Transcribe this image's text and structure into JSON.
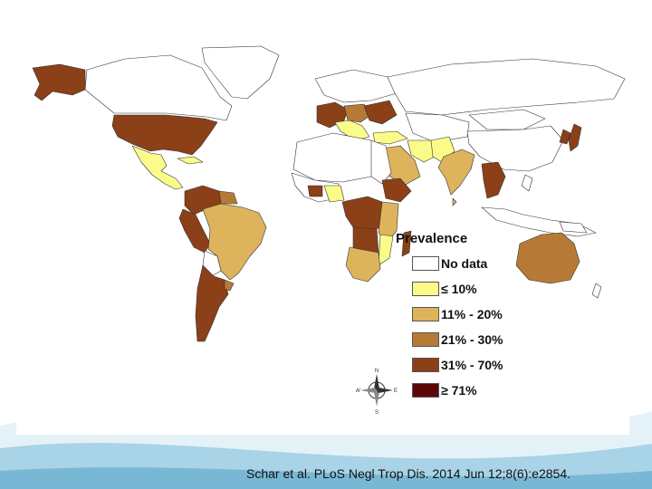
{
  "legend": {
    "title": "Prevalence",
    "items": [
      {
        "label": "No data",
        "color": "#ffffff"
      },
      {
        "label": "≤ 10%",
        "color": "#fbfb8a"
      },
      {
        "label": "11% - 20%",
        "color": "#ddb35c"
      },
      {
        "label": "21% - 30%",
        "color": "#b77a36"
      },
      {
        "label": "31% - 70%",
        "color": "#8b4018"
      },
      {
        "label": "≥ 71%",
        "color": "#5c0808"
      }
    ]
  },
  "compass": {
    "n": "N",
    "s": "S",
    "e": "E",
    "w": "W"
  },
  "citation": "Schar et al. PLoS Negl Trop Dis. 2014 Jun 12;8(6):e2854.",
  "background_colors": {
    "wave_light": "#e4f2f8",
    "wave_mid": "#a9d3e6",
    "wave_dark": "#5aa7c8"
  }
}
